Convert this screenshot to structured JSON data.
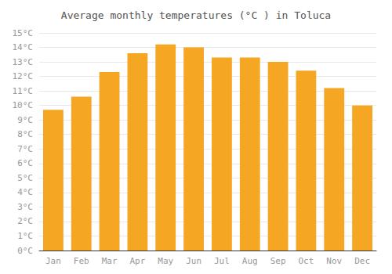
{
  "chart_data": {
    "type": "bar",
    "title": "Average monthly temperatures (°C ) in Toluca",
    "categories": [
      "Jan",
      "Feb",
      "Mar",
      "Apr",
      "May",
      "Jun",
      "Jul",
      "Aug",
      "Sep",
      "Oct",
      "Nov",
      "Dec"
    ],
    "values": [
      9.7,
      10.6,
      12.3,
      13.6,
      14.2,
      14.0,
      13.3,
      13.3,
      13.0,
      12.4,
      11.2,
      10.0
    ],
    "color": "#F5A623",
    "ylim": [
      0,
      15
    ],
    "yticks": [
      {
        "value": 0,
        "label": "0°C"
      },
      {
        "value": 1,
        "label": "1°C"
      },
      {
        "value": 2,
        "label": "2°C"
      },
      {
        "value": 3,
        "label": "3°C"
      },
      {
        "value": 4,
        "label": "4°C"
      },
      {
        "value": 5,
        "label": "5°C"
      },
      {
        "value": 6,
        "label": "6°C"
      },
      {
        "value": 7,
        "label": "7°C"
      },
      {
        "value": 8,
        "label": "8°C"
      },
      {
        "value": 9,
        "label": "9°C"
      },
      {
        "value": 10,
        "label": "10°C"
      },
      {
        "value": 11,
        "label": "11°C"
      },
      {
        "value": 12,
        "label": "12°C"
      },
      {
        "value": 13,
        "label": "13°C"
      },
      {
        "value": 14,
        "label": "14°C"
      },
      {
        "value": 15,
        "label": "15°C"
      }
    ],
    "grid": true
  }
}
